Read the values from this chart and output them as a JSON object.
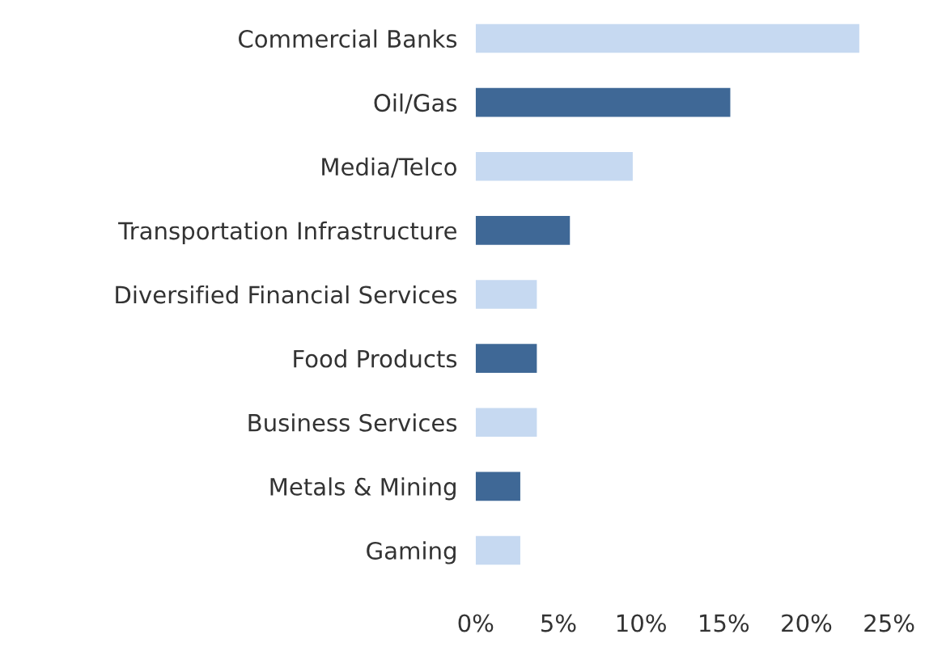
{
  "chart_data": {
    "type": "bar",
    "orientation": "horizontal",
    "categories": [
      "Commercial Banks",
      "Oil/Gas",
      "Media/Telco",
      "Transportation Infrastructure",
      "Diversified Financial Services",
      "Food Products",
      "Business Services",
      "Metals & Mining",
      "Gaming"
    ],
    "values": [
      23.2,
      15.4,
      9.5,
      5.7,
      3.7,
      3.7,
      3.7,
      2.7,
      2.7
    ],
    "colors": [
      "#c6d9f1",
      "#3f6896",
      "#c6d9f1",
      "#3f6896",
      "#c6d9f1",
      "#3f6896",
      "#c6d9f1",
      "#3f6896",
      "#c6d9f1"
    ],
    "xlim": [
      0,
      25
    ],
    "xticks": [
      {
        "value": 0,
        "label": "0%"
      },
      {
        "value": 5,
        "label": "5%"
      },
      {
        "value": 10,
        "label": "10%"
      },
      {
        "value": 15,
        "label": "15%"
      },
      {
        "value": 20,
        "label": "20%"
      },
      {
        "value": 25,
        "label": "25%"
      }
    ],
    "grid": false,
    "legend": false
  }
}
